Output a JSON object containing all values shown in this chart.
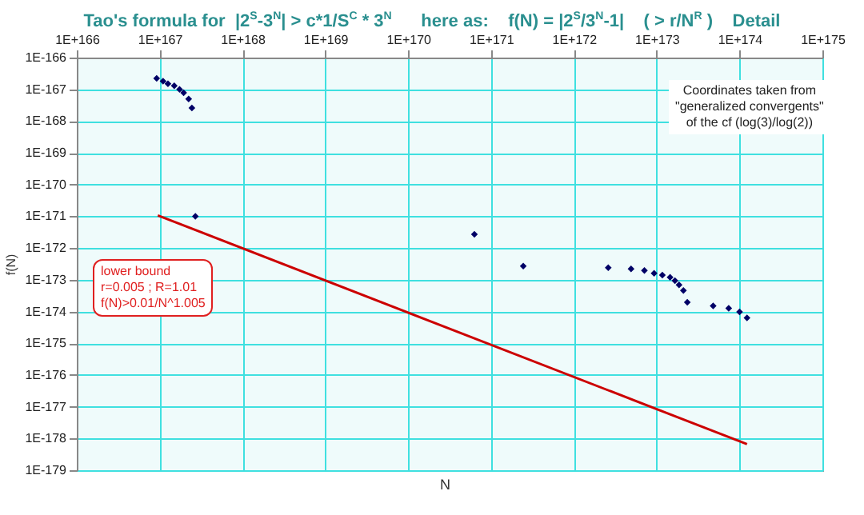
{
  "chart_data": {
    "type": "scatter",
    "title": "Tao's formula for  |2$^{S}$-3$^{N}$| > c*1/S$^{C}$ * 3$^{N}$      here as:    f(N) = |2$^{S}$/3$^{N}$-1|    ( > r/N$^{R}$ )    Detail",
    "xlabel": "N",
    "ylabel": "f(N)",
    "log": "xy",
    "grid": true,
    "xlim": [
      1e+166,
      1e+175
    ],
    "xticks": [
      {
        "value": 1e+166,
        "label": "1E+166"
      },
      {
        "value": 1e+167,
        "label": "1E+167"
      },
      {
        "value": 1e+168,
        "label": "1E+168"
      },
      {
        "value": 1e+169,
        "label": "1E+169"
      },
      {
        "value": 1e+170,
        "label": "1E+170"
      },
      {
        "value": 1e+171,
        "label": "1E+171"
      },
      {
        "value": 1e+172,
        "label": "1E+172"
      },
      {
        "value": 1e+173,
        "label": "1E+173"
      },
      {
        "value": 1e+174,
        "label": "1E+174"
      },
      {
        "value": 1e+175,
        "label": "1E+175"
      }
    ],
    "ylim": [
      1e-179,
      1e-166
    ],
    "yticks": [
      {
        "value": 1e-179,
        "label": "1E-179"
      },
      {
        "value": 1e-178,
        "label": "1E-178"
      },
      {
        "value": 1e-177,
        "label": "1E-177"
      },
      {
        "value": 1e-176,
        "label": "1E-176"
      },
      {
        "value": 1e-175,
        "label": "1E-175"
      },
      {
        "value": 1e-174,
        "label": "1E-174"
      },
      {
        "value": 1e-173,
        "label": "1E-173"
      },
      {
        "value": 1e-172,
        "label": "1E-172"
      },
      {
        "value": 1e-171,
        "label": "1E-171"
      },
      {
        "value": 1e-170,
        "label": "1E-170"
      },
      {
        "value": 1e-169,
        "label": "1E-169"
      },
      {
        "value": 1e-168,
        "label": "1E-168"
      },
      {
        "value": 1e-167,
        "label": "1E-167"
      },
      {
        "value": 1e-166,
        "label": "1E-166"
      }
    ],
    "series": [
      {
        "color": "#000066",
        "marker": "diamond",
        "x": [
          9.2e+166,
          1.1e+167,
          1.26e+167,
          1.5e+167,
          1.74e+167,
          1.95e+167,
          2.24e+167,
          2.45e+167,
          2.7e+167,
          6.3e+170,
          2.45e+171,
          2.6e+172,
          4.9e+172,
          7.1e+172,
          9.3e+172,
          1.17e+173,
          1.45e+173,
          1.66e+173,
          1.86e+173,
          2.1e+173,
          2.34e+173,
          4.8e+173,
          7.4e+173,
          1e+174,
          1.23e+174
        ],
        "values": [
          2.2e-167,
          1.8e-167,
          1.5e-167,
          1.3e-167,
          1e-167,
          7.8e-168,
          5e-168,
          2.6e-168,
          1e-171,
          2.7e-172,
          2.7e-173,
          2.4e-173,
          2.2e-173,
          1.95e-173,
          1.6e-173,
          1.4e-173,
          1.2e-173,
          9.3e-174,
          6.9e-174,
          4.6e-174,
          1.95e-174,
          1.5e-174,
          1.26e-174,
          9.8e-175,
          6.3e-175
        ]
      },
      {
        "type": "line",
        "color": "#cc0000",
        "line_style": "solid",
        "x": [
          9.5e+166,
          1.23e+174
        ],
        "values": [
          1.07e-171,
          6.6e-179
        ]
      }
    ],
    "annotations": [
      "lower bound\nr=0.005 ; R=1.01\nf(N)>0.01/N^1.005",
      "Coordinates taken from\n\"generalized convergents\"\nof the cf (log(3)/log(2))"
    ]
  }
}
